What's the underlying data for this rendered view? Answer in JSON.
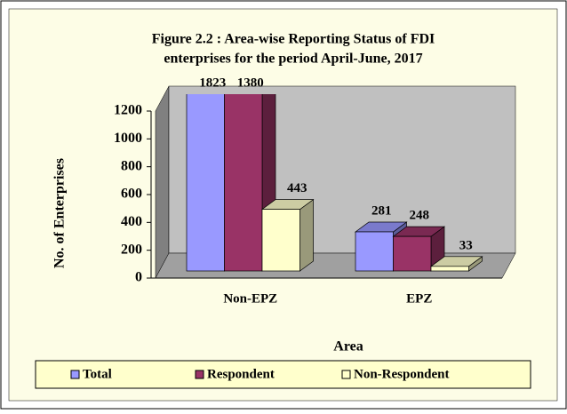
{
  "chart_data": {
    "type": "bar3d",
    "title": "Figure 2.2 : Area-wise Reporting Status of FDI",
    "subtitle": "enterprises for the  period  April-June, 2017",
    "x_label": "Area",
    "y_label": "No. of Enterprises",
    "categories": [
      "Non-EPZ",
      "EPZ"
    ],
    "series": [
      {
        "name": "Total",
        "color": "#9999ff",
        "values": [
          1823,
          281
        ]
      },
      {
        "name": "Respondent",
        "color": "#993366",
        "values": [
          1380,
          248
        ]
      },
      {
        "name": "Non-Respondent",
        "color": "#ffffcc",
        "values": [
          443,
          33
        ]
      }
    ],
    "ylim": [
      0,
      1200
    ],
    "yticks": [
      0,
      200,
      400,
      600,
      800,
      1000,
      1200
    ],
    "legend": "bottom"
  }
}
